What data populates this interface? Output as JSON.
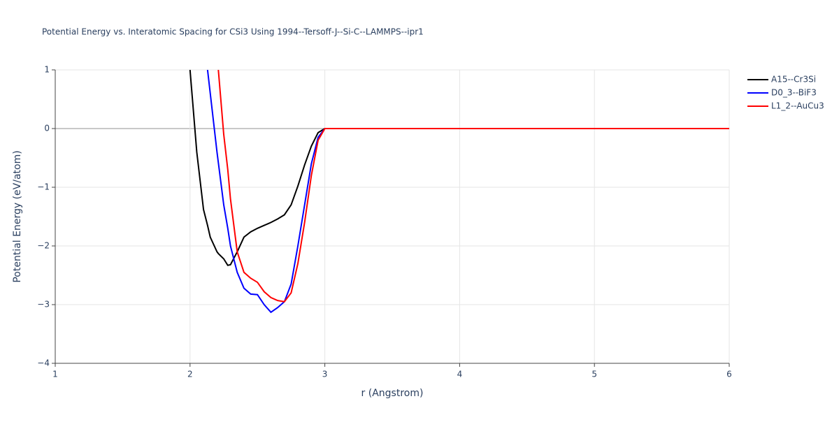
{
  "chart_data": {
    "type": "line",
    "title": "Potential Energy vs. Interatomic Spacing for CSi3 Using 1994--Tersoff-J--Si-C--LAMMPS--ipr1",
    "x_label": "r (Angstrom)",
    "y_label": "Potential Energy (eV/atom)",
    "x": [
      2.0,
      2.05,
      2.1,
      2.13,
      2.15,
      2.2,
      2.21,
      2.25,
      2.28,
      2.3,
      2.35,
      2.4,
      2.45,
      2.5,
      2.55,
      2.6,
      2.65,
      2.7,
      2.75,
      2.8,
      2.85,
      2.9,
      2.95,
      3.0,
      6.0
    ],
    "series": [
      {
        "name": "A15--Cr3Si",
        "color": "#000000",
        "values": [
          1.0,
          -0.4,
          -1.38,
          -1.65,
          -1.85,
          -2.1,
          -2.13,
          -2.22,
          -2.33,
          -2.32,
          -2.1,
          -1.85,
          -1.76,
          -1.7,
          -1.65,
          -1.6,
          -1.54,
          -1.47,
          -1.3,
          -0.98,
          -0.62,
          -0.3,
          -0.07,
          0,
          0
        ]
      },
      {
        "name": "D0_3--BiF3",
        "color": "#0000ff",
        "values": [
          null,
          null,
          null,
          1.0,
          0.6,
          -0.4,
          -0.58,
          -1.3,
          -1.7,
          -2.0,
          -2.45,
          -2.72,
          -2.82,
          -2.83,
          -3.0,
          -3.13,
          -3.05,
          -2.95,
          -2.65,
          -2.0,
          -1.3,
          -0.6,
          -0.15,
          0,
          0
        ]
      },
      {
        "name": "L1_2--AuCu3",
        "color": "#ff0000",
        "values": [
          null,
          null,
          null,
          null,
          null,
          null,
          1.0,
          -0.1,
          -0.7,
          -1.2,
          -2.1,
          -2.45,
          -2.55,
          -2.62,
          -2.78,
          -2.88,
          -2.93,
          -2.95,
          -2.8,
          -2.3,
          -1.6,
          -0.8,
          -0.2,
          0,
          0
        ]
      }
    ],
    "xlim": [
      1,
      6
    ],
    "xticks": [
      1,
      2,
      3,
      4,
      5,
      6
    ],
    "ylim": [
      -4,
      1
    ],
    "yticks": [
      1,
      0,
      {
        "value": -1,
        "label": "−1"
      },
      {
        "value": -2,
        "label": "−2"
      },
      {
        "value": -3,
        "label": "−3"
      },
      {
        "value": -4,
        "label": "−4"
      }
    ],
    "grid": true,
    "legend": "outside-right"
  }
}
